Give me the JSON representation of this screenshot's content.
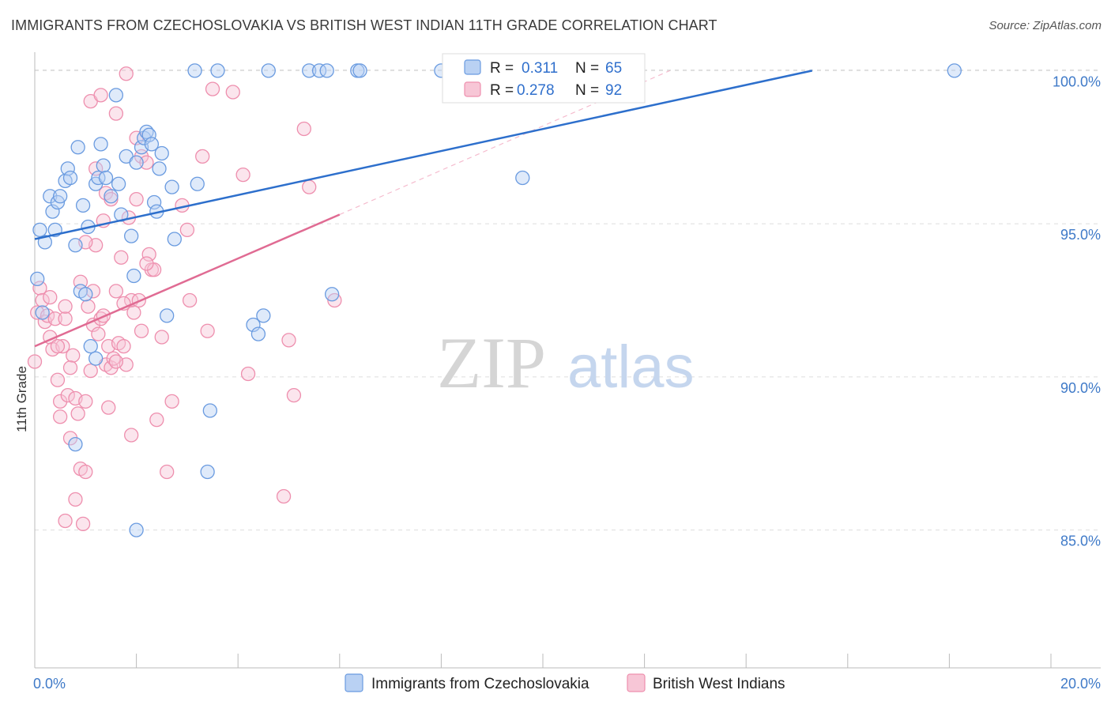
{
  "header": {
    "title": "IMMIGRANTS FROM CZECHOSLOVAKIA VS BRITISH WEST INDIAN 11TH GRADE CORRELATION CHART",
    "source": "Source: ZipAtlas.com"
  },
  "watermark": {
    "zip": "ZIP",
    "atlas": "atlas"
  },
  "legend_top": [
    {
      "r_label": "R =",
      "r_value": "0.311",
      "n_label": "N =",
      "n_value": "65"
    },
    {
      "r_label": "R =",
      "r_value": "0.278",
      "n_label": "N =",
      "n_value": "92"
    }
  ],
  "chart_data": {
    "type": "scatter",
    "title": "IMMIGRANTS FROM CZECHOSLOVAKIA VS BRITISH WEST INDIAN 11TH GRADE CORRELATION CHART",
    "xlabel": "",
    "ylabel": "11th Grade",
    "xlim": [
      0,
      20
    ],
    "ylim": [
      80.5,
      100.5
    ],
    "x_tick_labels": [
      "0.0%",
      "20.0%"
    ],
    "y_ticks": [
      85,
      90,
      95,
      100
    ],
    "y_tick_labels": [
      "85.0%",
      "90.0%",
      "95.0%",
      "100.0%"
    ],
    "colors": {
      "czech": "#6a9be0",
      "bwi": "#ee8fae",
      "czech_line": "#2d6fcc",
      "bwi_line": "#e06b93"
    },
    "series": [
      {
        "name": "Immigrants from Czechoslovakia",
        "R": 0.311,
        "N": 65,
        "trend": {
          "x": [
            0,
            15.3
          ],
          "y": [
            94.5,
            100.0
          ]
        },
        "points": [
          [
            0.1,
            94.8
          ],
          [
            0.2,
            94.4
          ],
          [
            0.3,
            95.9
          ],
          [
            0.35,
            95.4
          ],
          [
            0.4,
            94.8
          ],
          [
            0.45,
            95.7
          ],
          [
            0.5,
            95.9
          ],
          [
            0.6,
            96.4
          ],
          [
            0.65,
            96.8
          ],
          [
            0.7,
            96.5
          ],
          [
            0.8,
            94.3
          ],
          [
            0.85,
            97.5
          ],
          [
            0.9,
            92.8
          ],
          [
            0.95,
            95.6
          ],
          [
            1.0,
            92.7
          ],
          [
            1.05,
            94.9
          ],
          [
            1.1,
            91.0
          ],
          [
            1.2,
            96.3
          ],
          [
            1.25,
            96.5
          ],
          [
            1.3,
            97.6
          ],
          [
            1.35,
            96.9
          ],
          [
            1.4,
            96.5
          ],
          [
            1.5,
            95.9
          ],
          [
            1.6,
            99.2
          ],
          [
            1.65,
            96.3
          ],
          [
            1.7,
            95.3
          ],
          [
            1.8,
            97.2
          ],
          [
            1.9,
            94.6
          ],
          [
            1.95,
            93.3
          ],
          [
            2.0,
            97.0
          ],
          [
            2.1,
            97.5
          ],
          [
            2.15,
            97.8
          ],
          [
            2.2,
            98.0
          ],
          [
            2.25,
            97.9
          ],
          [
            2.3,
            97.6
          ],
          [
            2.35,
            95.7
          ],
          [
            2.4,
            95.4
          ],
          [
            2.45,
            96.8
          ],
          [
            2.5,
            97.3
          ],
          [
            2.6,
            92.0
          ],
          [
            2.7,
            96.2
          ],
          [
            2.75,
            94.5
          ],
          [
            3.15,
            100.0
          ],
          [
            3.2,
            96.3
          ],
          [
            3.45,
            88.9
          ],
          [
            3.6,
            100.0
          ],
          [
            4.3,
            91.7
          ],
          [
            4.4,
            91.4
          ],
          [
            4.5,
            92.0
          ],
          [
            4.6,
            100.0
          ],
          [
            5.4,
            100.0
          ],
          [
            5.6,
            100.0
          ],
          [
            5.75,
            100.0
          ],
          [
            5.85,
            92.7
          ],
          [
            6.35,
            100.0
          ],
          [
            6.4,
            100.0
          ],
          [
            8.0,
            100.0
          ],
          [
            9.6,
            96.5
          ],
          [
            18.1,
            100.0
          ],
          [
            0.05,
            93.2
          ],
          [
            0.15,
            92.1
          ],
          [
            1.2,
            90.6
          ],
          [
            2.0,
            85.0
          ],
          [
            3.4,
            86.9
          ],
          [
            0.8,
            87.8
          ]
        ]
      },
      {
        "name": "British West Indians",
        "R": 0.278,
        "N": 92,
        "trend": {
          "x": [
            0,
            6.0
          ],
          "y": [
            91.0,
            95.3
          ]
        },
        "trend_ext": {
          "x": [
            6.0,
            12.5
          ],
          "y": [
            95.3,
            100.0
          ]
        },
        "points": [
          [
            0.0,
            90.5
          ],
          [
            0.05,
            92.1
          ],
          [
            0.1,
            92.9
          ],
          [
            0.15,
            92.5
          ],
          [
            0.2,
            91.8
          ],
          [
            0.25,
            92.0
          ],
          [
            0.3,
            91.3
          ],
          [
            0.35,
            90.9
          ],
          [
            0.4,
            91.9
          ],
          [
            0.45,
            89.9
          ],
          [
            0.5,
            89.2
          ],
          [
            0.5,
            88.7
          ],
          [
            0.6,
            91.9
          ],
          [
            0.6,
            92.3
          ],
          [
            0.65,
            89.4
          ],
          [
            0.7,
            88.0
          ],
          [
            0.75,
            90.7
          ],
          [
            0.8,
            86.0
          ],
          [
            0.8,
            89.3
          ],
          [
            0.85,
            88.8
          ],
          [
            0.9,
            87.0
          ],
          [
            0.95,
            85.2
          ],
          [
            1.0,
            89.2
          ],
          [
            1.0,
            86.9
          ],
          [
            1.05,
            92.3
          ],
          [
            1.1,
            90.2
          ],
          [
            1.15,
            91.7
          ],
          [
            1.2,
            94.3
          ],
          [
            1.25,
            91.4
          ],
          [
            1.3,
            91.9
          ],
          [
            1.35,
            95.1
          ],
          [
            1.4,
            90.4
          ],
          [
            1.45,
            91.0
          ],
          [
            1.5,
            90.3
          ],
          [
            1.55,
            90.6
          ],
          [
            1.6,
            92.8
          ],
          [
            1.65,
            91.1
          ],
          [
            1.7,
            93.9
          ],
          [
            1.75,
            91.0
          ],
          [
            1.8,
            90.4
          ],
          [
            1.85,
            95.2
          ],
          [
            1.9,
            92.5
          ],
          [
            1.95,
            92.1
          ],
          [
            2.0,
            95.8
          ],
          [
            2.05,
            92.5
          ],
          [
            2.1,
            97.2
          ],
          [
            2.2,
            97.0
          ],
          [
            2.25,
            94.0
          ],
          [
            2.3,
            93.5
          ],
          [
            2.35,
            93.5
          ],
          [
            2.4,
            88.6
          ],
          [
            2.5,
            91.3
          ],
          [
            2.6,
            86.9
          ],
          [
            2.7,
            89.2
          ],
          [
            2.9,
            95.6
          ],
          [
            3.0,
            94.8
          ],
          [
            3.05,
            92.5
          ],
          [
            3.3,
            97.2
          ],
          [
            3.4,
            91.5
          ],
          [
            3.5,
            99.4
          ],
          [
            3.9,
            99.3
          ],
          [
            4.1,
            96.6
          ],
          [
            4.2,
            90.1
          ],
          [
            4.9,
            86.1
          ],
          [
            5.0,
            91.2
          ],
          [
            5.1,
            89.4
          ],
          [
            5.3,
            98.1
          ],
          [
            5.4,
            96.2
          ],
          [
            5.9,
            92.5
          ],
          [
            1.1,
            99.0
          ],
          [
            1.3,
            99.2
          ],
          [
            1.6,
            98.6
          ],
          [
            1.8,
            99.9
          ],
          [
            2.0,
            97.8
          ],
          [
            1.2,
            96.8
          ],
          [
            1.4,
            96.0
          ],
          [
            1.5,
            95.8
          ],
          [
            0.3,
            92.6
          ],
          [
            0.55,
            91.0
          ],
          [
            0.7,
            90.3
          ],
          [
            0.9,
            93.1
          ],
          [
            1.0,
            94.4
          ],
          [
            1.15,
            92.8
          ],
          [
            1.35,
            92.0
          ],
          [
            1.45,
            89.0
          ],
          [
            1.6,
            90.5
          ],
          [
            1.75,
            92.4
          ],
          [
            1.9,
            88.1
          ],
          [
            2.1,
            91.5
          ],
          [
            2.2,
            93.7
          ],
          [
            0.45,
            91.0
          ],
          [
            0.6,
            85.3
          ]
        ]
      }
    ],
    "legend_bottom": [
      "Immigrants from Czechoslovakia",
      "British West Indians"
    ]
  }
}
